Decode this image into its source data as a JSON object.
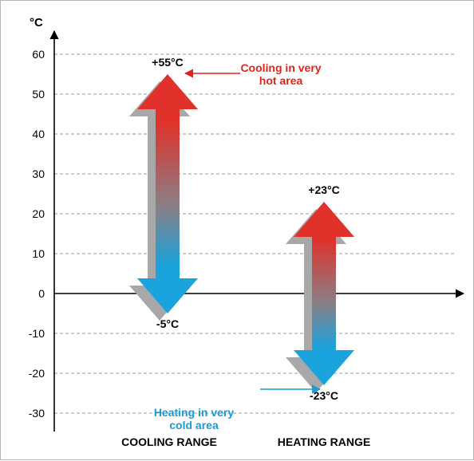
{
  "chart_data": {
    "type": "range-arrows",
    "yunit": "°C",
    "ylim": [
      -30,
      60
    ],
    "yticks": [
      60,
      50,
      40,
      30,
      20,
      10,
      0,
      -10,
      -20,
      -30
    ],
    "grid": true,
    "categories": [
      "COOLING RANGE",
      "HEATING RANGE"
    ],
    "series": [
      {
        "category": "COOLING RANGE",
        "min": -5,
        "max": 55,
        "min_label": "-5°C",
        "max_label": "+55°C"
      },
      {
        "category": "HEATING RANGE",
        "min": -23,
        "max": 23,
        "min_label": "-23°C",
        "max_label": "+23°C"
      }
    ],
    "annotations": [
      {
        "lines": [
          "Cooling in very",
          "hot area"
        ],
        "target_series": 0,
        "target_end": "max",
        "color": "#e2231a"
      },
      {
        "lines": [
          "Heating in very",
          "cold area"
        ],
        "target_series": 1,
        "target_end": "min",
        "color": "#1a9ad6"
      }
    ],
    "colors": {
      "hot": "#e0312a",
      "cold": "#1aa3dc",
      "shadow": "#a8a8a8",
      "axis": "#000000",
      "grid": "#9a9a9a"
    }
  }
}
